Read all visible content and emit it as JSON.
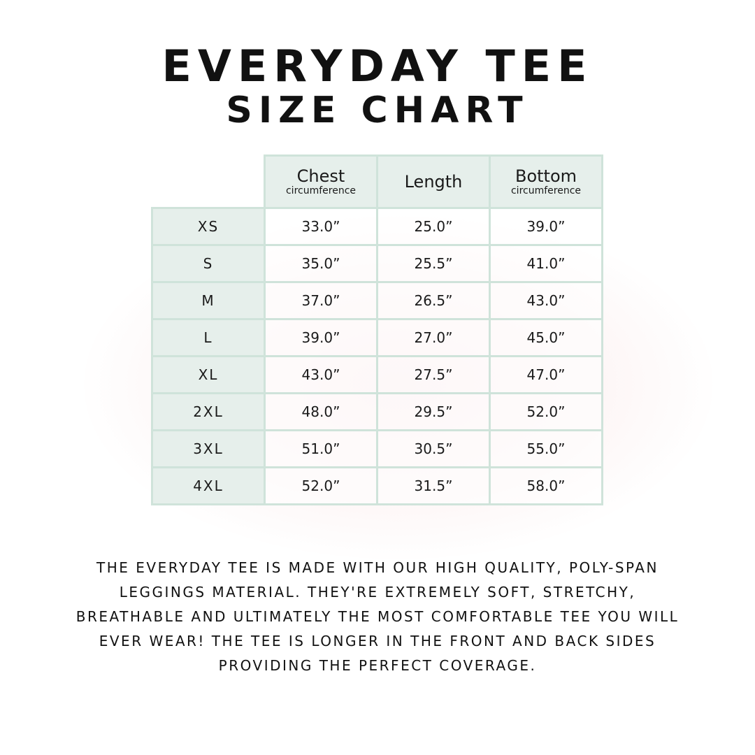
{
  "title_line1": "EVERYDAY TEE",
  "title_line2": "SIZE CHART",
  "table": {
    "headers": [
      {
        "label": "Chest",
        "sub": "circumference"
      },
      {
        "label": "Length",
        "sub": ""
      },
      {
        "label": "Bottom",
        "sub": "circumference"
      }
    ],
    "rows": [
      {
        "size": "XS",
        "chest": "33.0”",
        "length": "25.0”",
        "bottom": "39.0”"
      },
      {
        "size": "S",
        "chest": "35.0”",
        "length": "25.5”",
        "bottom": "41.0”"
      },
      {
        "size": "M",
        "chest": "37.0”",
        "length": "26.5”",
        "bottom": "43.0”"
      },
      {
        "size": "L",
        "chest": "39.0”",
        "length": "27.0”",
        "bottom": "45.0”"
      },
      {
        "size": "XL",
        "chest": "43.0”",
        "length": "27.5”",
        "bottom": "47.0”"
      },
      {
        "size": "2XL",
        "chest": "48.0”",
        "length": "29.5”",
        "bottom": "52.0”"
      },
      {
        "size": "3XL",
        "chest": "51.0”",
        "length": "30.5”",
        "bottom": "55.0”"
      },
      {
        "size": "4XL",
        "chest": "52.0”",
        "length": "31.5”",
        "bottom": "58.0”"
      }
    ]
  },
  "description": "The Everyday Tee is made with our high quality, poly-span leggings material. They're extremely soft, stretchy, breathable and ultimately the most comfortable tee you will ever wear! The tee is longer in the front and back sides providing the perfect coverage.",
  "colors": {
    "border": "#cfe3da",
    "header_bg": "#e6efeb"
  }
}
